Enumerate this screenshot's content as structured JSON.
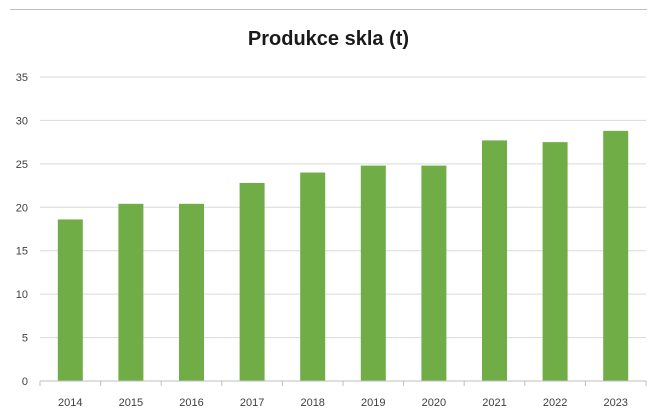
{
  "chart_data": {
    "type": "bar",
    "title": "Produkce skla (t)",
    "xlabel": "",
    "ylabel": "",
    "categories": [
      "2014",
      "2015",
      "2016",
      "2017",
      "2018",
      "2019",
      "2020",
      "2021",
      "2022",
      "2023"
    ],
    "values": [
      18.6,
      20.4,
      20.4,
      22.8,
      24.0,
      24.8,
      24.8,
      27.7,
      27.5,
      28.8
    ],
    "ylim": [
      0,
      35
    ],
    "yticks": [
      "0",
      "5",
      "10",
      "15",
      "20",
      "25",
      "30",
      "35"
    ],
    "grid": true,
    "legend": "none",
    "bar_color": "#70ad47",
    "grid_color": "#d9d9d9"
  }
}
